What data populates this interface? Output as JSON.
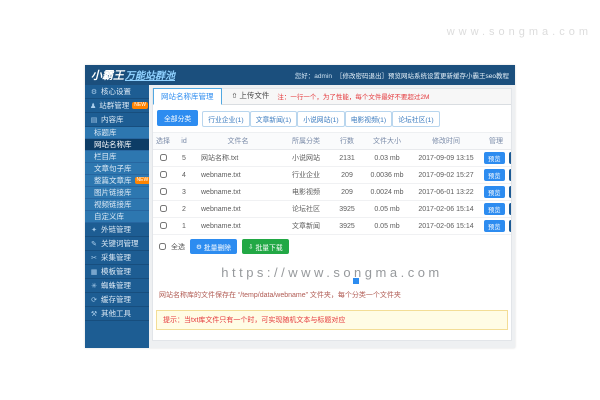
{
  "watermarks": {
    "top": "www.songma.com",
    "main": "https://www.songma.com"
  },
  "colors": {
    "accent_blue": "#2d8cf0",
    "dark_blue": "#1c5a94",
    "navy_header": "#1b4f7d",
    "sidebar_blue": "#2d77b0",
    "green": "#22a845",
    "red": "#e4393c",
    "badge_orange": "#ff8400",
    "tip_bg": "#fffce5"
  },
  "header": {
    "logo_main": "小霸王",
    "logo_sub": "万能站群池",
    "greeting": "您好：admin",
    "links": [
      {
        "label": "修改密码",
        "prefix": "［"
      },
      {
        "label": "退出",
        "suffix": "］"
      },
      {
        "label": "预览网站"
      },
      {
        "label": "系统设置"
      },
      {
        "label": "更新缓存"
      },
      {
        "label": "小霸王seo教程"
      }
    ]
  },
  "sidebar": {
    "items": [
      {
        "label": "核心设置",
        "type": "section",
        "icon": "gear-icon",
        "glyph": "⚙"
      },
      {
        "label": "站群管理",
        "type": "section",
        "icon": "site-group-icon",
        "glyph": "♟",
        "badge": "NEW"
      },
      {
        "label": "内容库",
        "type": "section",
        "icon": "library-icon",
        "glyph": "▤"
      },
      {
        "label": "标题库",
        "type": "sub"
      },
      {
        "label": "网站名称库",
        "type": "sub",
        "active": true
      },
      {
        "label": "栏目库",
        "type": "sub"
      },
      {
        "label": "文章句子库",
        "type": "sub"
      },
      {
        "label": "整篇文章库",
        "type": "sub",
        "badge": "NEW"
      },
      {
        "label": "图片链接库",
        "type": "sub"
      },
      {
        "label": "视频链接库",
        "type": "sub"
      },
      {
        "label": "自定义库",
        "type": "sub"
      },
      {
        "label": "外链管理",
        "type": "section",
        "icon": "links-icon",
        "glyph": "✦"
      },
      {
        "label": "关键词管理",
        "type": "section",
        "icon": "keywords-icon",
        "glyph": "✎"
      },
      {
        "label": "采集管理",
        "type": "section",
        "icon": "collect-icon",
        "glyph": "✂"
      },
      {
        "label": "模板管理",
        "type": "section",
        "icon": "template-icon",
        "glyph": "▦"
      },
      {
        "label": "蜘蛛管理",
        "type": "section",
        "icon": "spider-icon",
        "glyph": "✳"
      },
      {
        "label": "缓存管理",
        "type": "section",
        "icon": "cache-icon",
        "glyph": "⟳"
      },
      {
        "label": "其他工具",
        "type": "section",
        "icon": "tools-icon",
        "glyph": "⚒"
      }
    ]
  },
  "tabs": {
    "active": "网站名称库管理",
    "upload": "上传文件",
    "note": "注：一行一个，为了性能，每个文件最好不要超过2M"
  },
  "filters": {
    "all": "全部分类",
    "categories": [
      "行业企业(1)",
      "文章新闻(1)",
      "小说网站(1)",
      "电影视频(1)",
      "论坛社区(1)"
    ]
  },
  "table": {
    "headers": [
      "选择",
      "id",
      "文件名",
      "所属分类",
      "行数",
      "文件大小",
      "修改时间",
      "管理"
    ],
    "actions": {
      "preview": "预览",
      "download": "下载",
      "delete": "删除"
    },
    "rows": [
      {
        "id": "5",
        "file": "网站名称.txt",
        "category": "小说网站",
        "lines": "2131",
        "size": "0.03 mb",
        "modified": "2017-09-09 13:15"
      },
      {
        "id": "4",
        "file": "webname.txt",
        "category": "行业企业",
        "lines": "209",
        "size": "0.0036 mb",
        "modified": "2017-09-02 15:27"
      },
      {
        "id": "3",
        "file": "webname.txt",
        "category": "电影视频",
        "lines": "209",
        "size": "0.0024 mb",
        "modified": "2017-06-01 13:22"
      },
      {
        "id": "2",
        "file": "webname.txt",
        "category": "论坛社区",
        "lines": "3925",
        "size": "0.05 mb",
        "modified": "2017-02-06 15:14"
      },
      {
        "id": "1",
        "file": "webname.txt",
        "category": "文章新闻",
        "lines": "3925",
        "size": "0.05 mb",
        "modified": "2017-02-06 15:14"
      }
    ]
  },
  "batch": {
    "select_all": "全选",
    "delete": "批量删除",
    "download": "批量下载"
  },
  "info_line": "网站名称库的文件保存在 “/temp/data/webname” 文件夹，每个分类一个文件夹",
  "tip": "提示：当txt库文件只有一个时，可实现随机文本与标题对应"
}
